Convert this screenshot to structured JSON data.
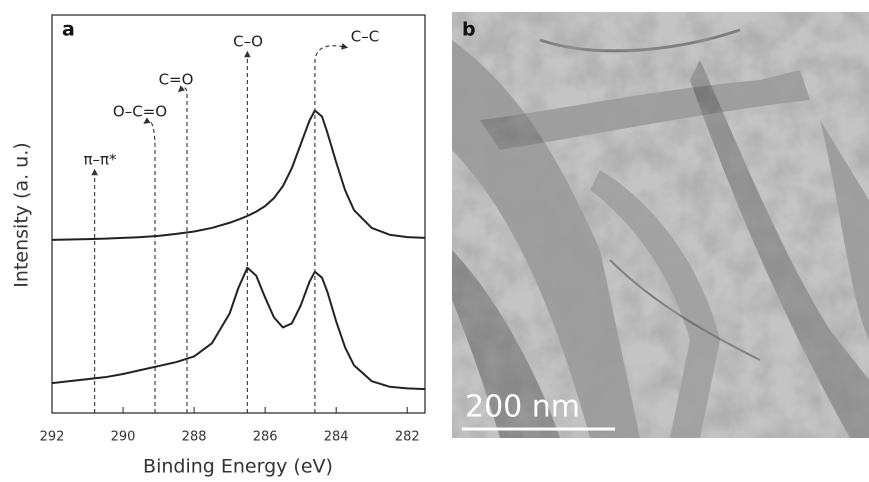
{
  "chart_data": {
    "type": "line",
    "panel_label": "a",
    "x_label": "Binding Energy (eV)",
    "y_label": "Intensity (a. u.)",
    "xlim": [
      292,
      281.5
    ],
    "ylim": [
      0,
      100
    ],
    "xticks": [
      292,
      290,
      288,
      286,
      284,
      282
    ],
    "x": [
      292,
      291.5,
      291,
      290.5,
      290,
      289.5,
      289,
      288.5,
      288,
      287.5,
      287,
      286.75,
      286.5,
      286.25,
      286,
      285.75,
      285.5,
      285.25,
      285,
      284.75,
      284.6,
      284.4,
      284.25,
      284,
      283.75,
      283.5,
      283,
      282.5,
      282,
      281.5
    ],
    "series": [
      {
        "color": "#222222",
        "values": [
          43.5,
          43.6,
          43.7,
          43.8,
          44,
          44.2,
          44.5,
          45,
          45.6,
          46.5,
          47.8,
          48.6,
          49.5,
          50.6,
          52,
          54,
          57,
          61.5,
          67.5,
          73.5,
          76,
          74.5,
          70.5,
          63,
          56,
          51,
          46.5,
          44.8,
          44.2,
          44
        ]
      },
      {
        "color": "#222222",
        "values": [
          7.5,
          8,
          8.5,
          9,
          9.8,
          10.8,
          11.8,
          12.8,
          14.2,
          17.5,
          25,
          31.5,
          36.5,
          34.5,
          29,
          24,
          21.5,
          22.5,
          27,
          33,
          35.5,
          34,
          30.5,
          23,
          16.5,
          12,
          8,
          6.6,
          6.2,
          6
        ]
      }
    ],
    "annotations": [
      {
        "text": "π–π*",
        "x": 290.8
      },
      {
        "text": "O–C=O",
        "x": 289.1
      },
      {
        "text": "C=O",
        "x": 288.2
      },
      {
        "text": "C–O",
        "x": 286.5
      },
      {
        "text": "C–C",
        "x": 284.6
      }
    ]
  },
  "image_panel": {
    "panel_label": "b",
    "scale_bar": "200 nm"
  }
}
